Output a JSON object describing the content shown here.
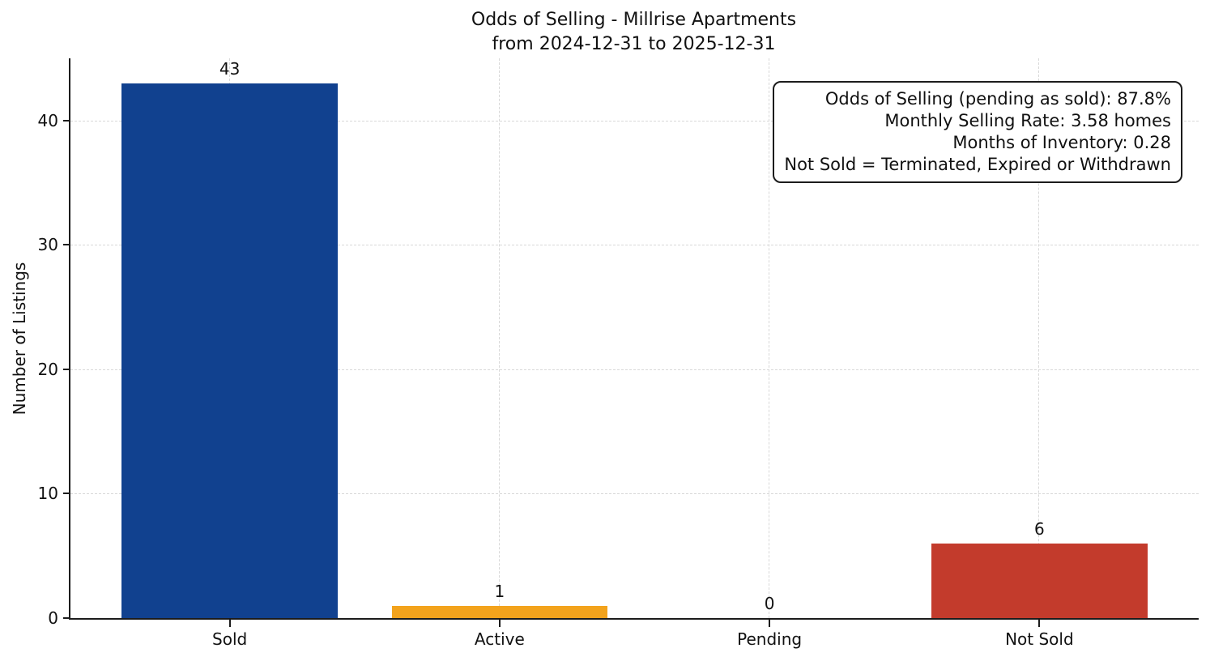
{
  "chart_data": {
    "type": "bar",
    "title": "Odds of Selling - Millrise Apartments",
    "subtitle": "from 2024-12-31 to 2025-12-31",
    "ylabel": "Number of Listings",
    "xlabel": "",
    "ylim": [
      0,
      45
    ],
    "yticks": [
      0,
      10,
      20,
      30,
      40
    ],
    "grid": "dashed, horizontal and vertical",
    "legend": "none",
    "categories": [
      "Sold",
      "Active",
      "Pending",
      "Not Sold"
    ],
    "values": [
      43,
      1,
      0,
      6
    ],
    "bars": [
      {
        "label": "Sold",
        "value": 43,
        "value_label": "43",
        "color": "#11418f"
      },
      {
        "label": "Active",
        "value": 1,
        "value_label": "1",
        "color": "#f3a31c"
      },
      {
        "label": "Pending",
        "value": 0,
        "value_label": "0",
        "color": null
      },
      {
        "label": "Not Sold",
        "value": 6,
        "value_label": "6",
        "color": "#c33b2c"
      }
    ],
    "annotation": {
      "lines": [
        "Odds of Selling (pending as sold): 87.8%",
        "Monthly Selling Rate: 3.58 homes",
        "Months of Inventory: 0.28",
        "Not Sold = Terminated, Expired or Withdrawn"
      ]
    },
    "colors": {
      "sold_bar": "#11418f",
      "active_bar": "#f3a31c",
      "not_sold_bar": "#c33b2c",
      "axis": "#1c1c1c",
      "gridline": "#d8d8d8",
      "text": "#111111",
      "background": "#ffffff"
    }
  }
}
